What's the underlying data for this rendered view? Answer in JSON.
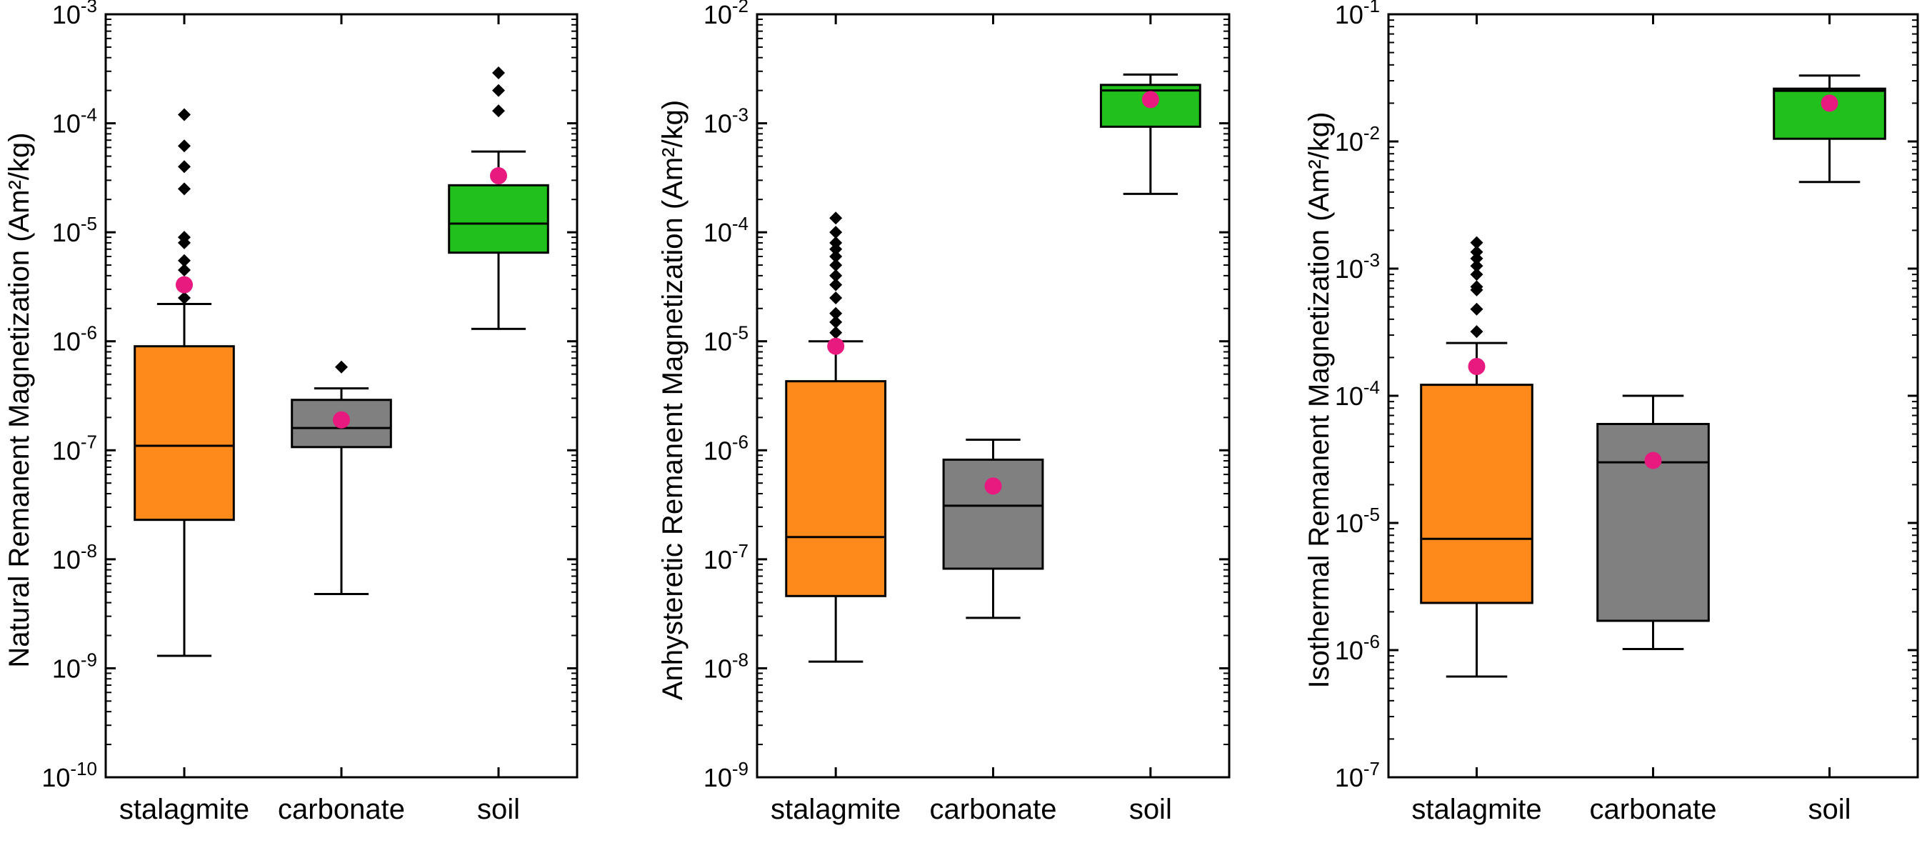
{
  "chart_data": [
    {
      "type": "box",
      "ylabel": "Natural Remanent Magnetization (Am²/kg)",
      "yscale": "log",
      "ylim_exp": [
        -10,
        -3
      ],
      "categories": [
        "stalagmite",
        "carbonate",
        "soil"
      ],
      "boxes": [
        {
          "category": "stalagmite",
          "color": "#ff8a1c",
          "whisker_low": 1.3e-09,
          "q1": 2.3e-08,
          "median": 1.1e-07,
          "q3": 9e-07,
          "whisker_high": 2.2e-06,
          "mean": 3.3e-06,
          "outliers": [
            2.5e-06,
            3.2e-06,
            4.5e-06,
            5.5e-06,
            8e-06,
            9e-06,
            2.5e-05,
            4e-05,
            6.2e-05,
            0.00012
          ]
        },
        {
          "category": "carbonate",
          "color": "#808080",
          "whisker_low": 4.8e-09,
          "q1": 1.07e-07,
          "median": 1.6e-07,
          "q3": 2.9e-07,
          "whisker_high": 3.7e-07,
          "mean": 1.9e-07,
          "outliers": [
            5.8e-07
          ]
        },
        {
          "category": "soil",
          "color": "#22c01c",
          "whisker_low": 1.3e-06,
          "q1": 6.5e-06,
          "median": 1.2e-05,
          "q3": 2.7e-05,
          "whisker_high": 5.5e-05,
          "mean": 3.3e-05,
          "outliers": [
            0.00013,
            0.0002,
            0.00029
          ]
        }
      ]
    },
    {
      "type": "box",
      "ylabel": "Anhysteretic Remanent Magnetization (Am²/kg)",
      "yscale": "log",
      "ylim_exp": [
        -9,
        -2
      ],
      "categories": [
        "stalagmite",
        "carbonate",
        "soil"
      ],
      "boxes": [
        {
          "category": "stalagmite",
          "color": "#ff8a1c",
          "whisker_low": 1.15e-08,
          "q1": 4.6e-08,
          "median": 1.6e-07,
          "q3": 4.3e-06,
          "whisker_high": 1e-05,
          "mean": 9e-06,
          "outliers": [
            1.2e-05,
            1.5e-05,
            1.8e-05,
            2.5e-05,
            3.3e-05,
            4e-05,
            5e-05,
            6e-05,
            7e-05,
            8e-05,
            0.0001,
            0.000135
          ]
        },
        {
          "category": "carbonate",
          "color": "#808080",
          "whisker_low": 2.9e-08,
          "q1": 8.2e-08,
          "median": 3.1e-07,
          "q3": 8.2e-07,
          "whisker_high": 1.25e-06,
          "mean": 4.7e-07,
          "outliers": []
        },
        {
          "category": "soil",
          "color": "#22c01c",
          "whisker_low": 0.000225,
          "q1": 0.00093,
          "median": 0.002,
          "q3": 0.00225,
          "whisker_high": 0.0028,
          "mean": 0.00165,
          "outliers": []
        }
      ]
    },
    {
      "type": "box",
      "ylabel": "Isothermal Remanent Magnetization (Am²/kg)",
      "yscale": "log",
      "ylim_exp": [
        -7,
        -1
      ],
      "categories": [
        "stalagmite",
        "carbonate",
        "soil"
      ],
      "boxes": [
        {
          "category": "stalagmite",
          "color": "#ff8a1c",
          "whisker_low": 6.2e-07,
          "q1": 2.35e-06,
          "median": 7.5e-06,
          "q3": 0.000122,
          "whisker_high": 0.00026,
          "mean": 0.00017,
          "outliers": [
            0.00032,
            0.00048,
            0.00068,
            0.00072,
            0.0009,
            0.00105,
            0.0012,
            0.00135,
            0.0016
          ]
        },
        {
          "category": "carbonate",
          "color": "#808080",
          "whisker_low": 1.02e-06,
          "q1": 1.7e-06,
          "median": 3e-05,
          "q3": 6e-05,
          "whisker_high": 0.0001,
          "mean": 3.1e-05,
          "outliers": []
        },
        {
          "category": "soil",
          "color": "#22c01c",
          "whisker_low": 0.0048,
          "q1": 0.0105,
          "median": 0.025,
          "q3": 0.026,
          "whisker_high": 0.033,
          "mean": 0.02,
          "outliers": []
        }
      ]
    }
  ],
  "style": {
    "mean_color": "#e8197f",
    "outlier_color": "#000000",
    "axis_color": "#000000"
  }
}
